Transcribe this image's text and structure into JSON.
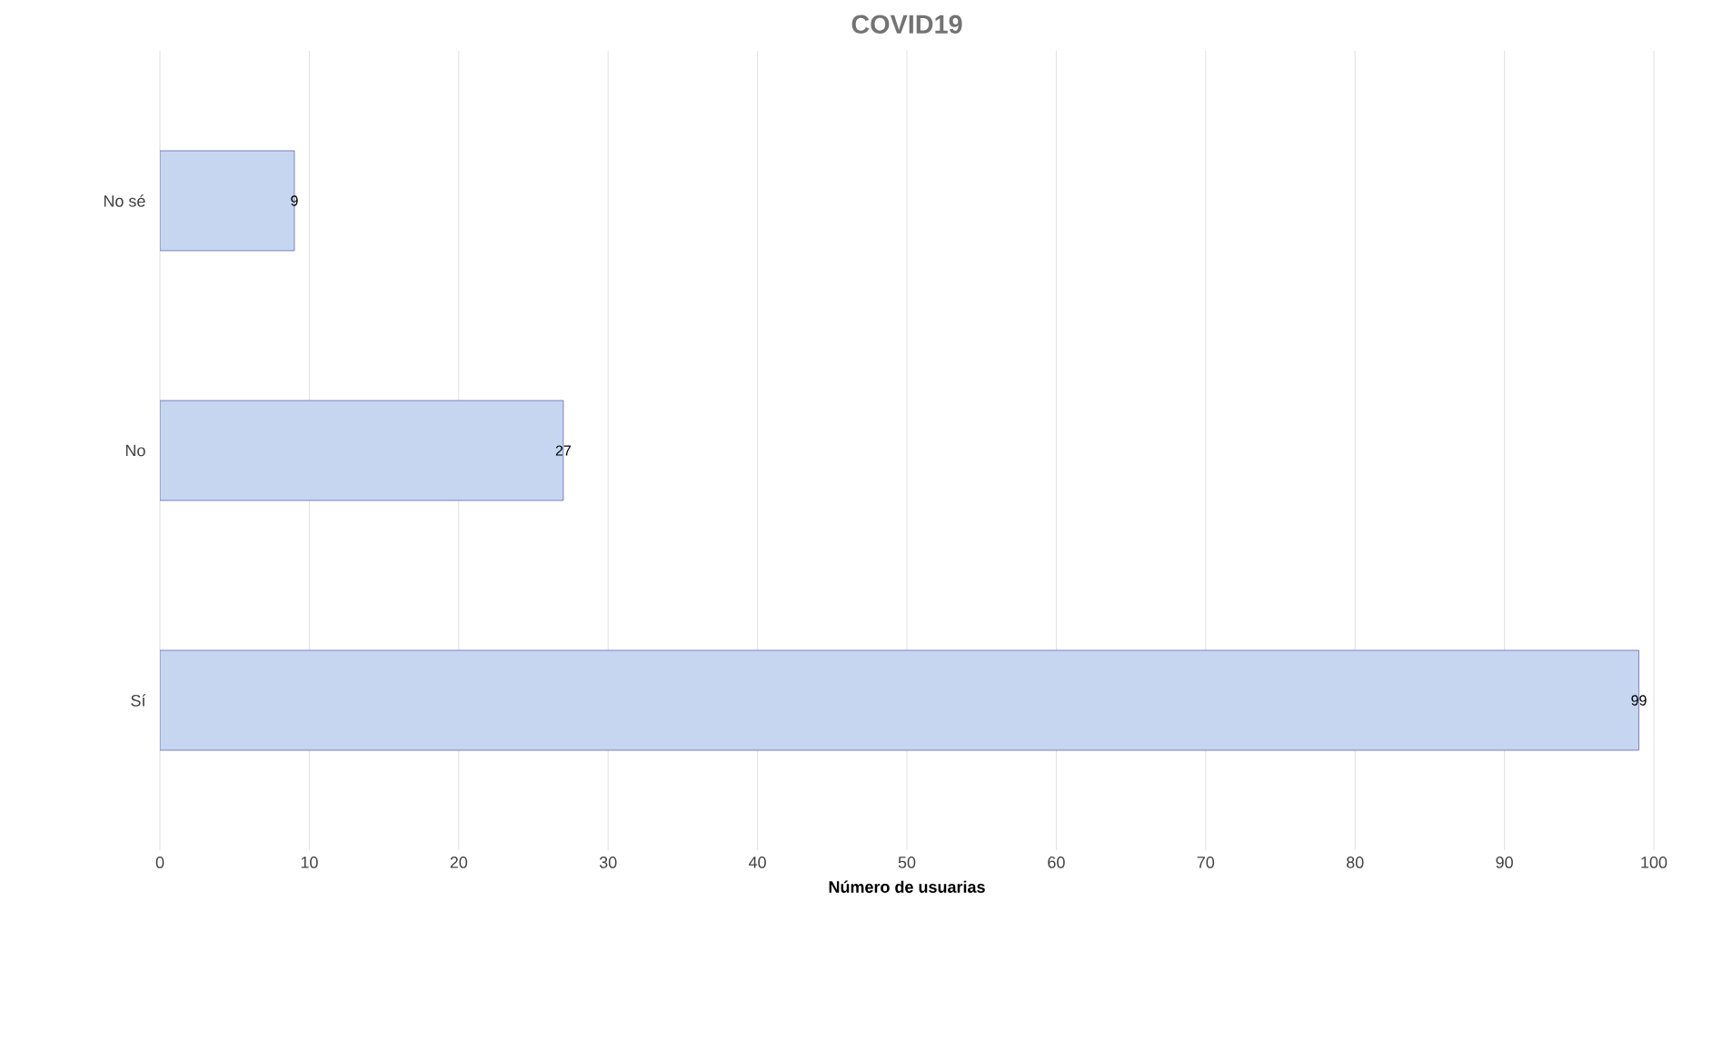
{
  "chart_data": {
    "type": "bar",
    "orientation": "horizontal",
    "title": "COVID19",
    "xlabel": "Número de usuarias",
    "categories": [
      "No sé",
      "No",
      "Sí"
    ],
    "values": [
      9,
      27,
      99
    ],
    "color": "#c6d6f0",
    "xlim": [
      0,
      100
    ],
    "xticks": [
      0,
      10,
      20,
      30,
      40,
      50,
      60,
      70,
      80,
      90,
      100
    ],
    "grid": "x",
    "data_labels": true
  }
}
